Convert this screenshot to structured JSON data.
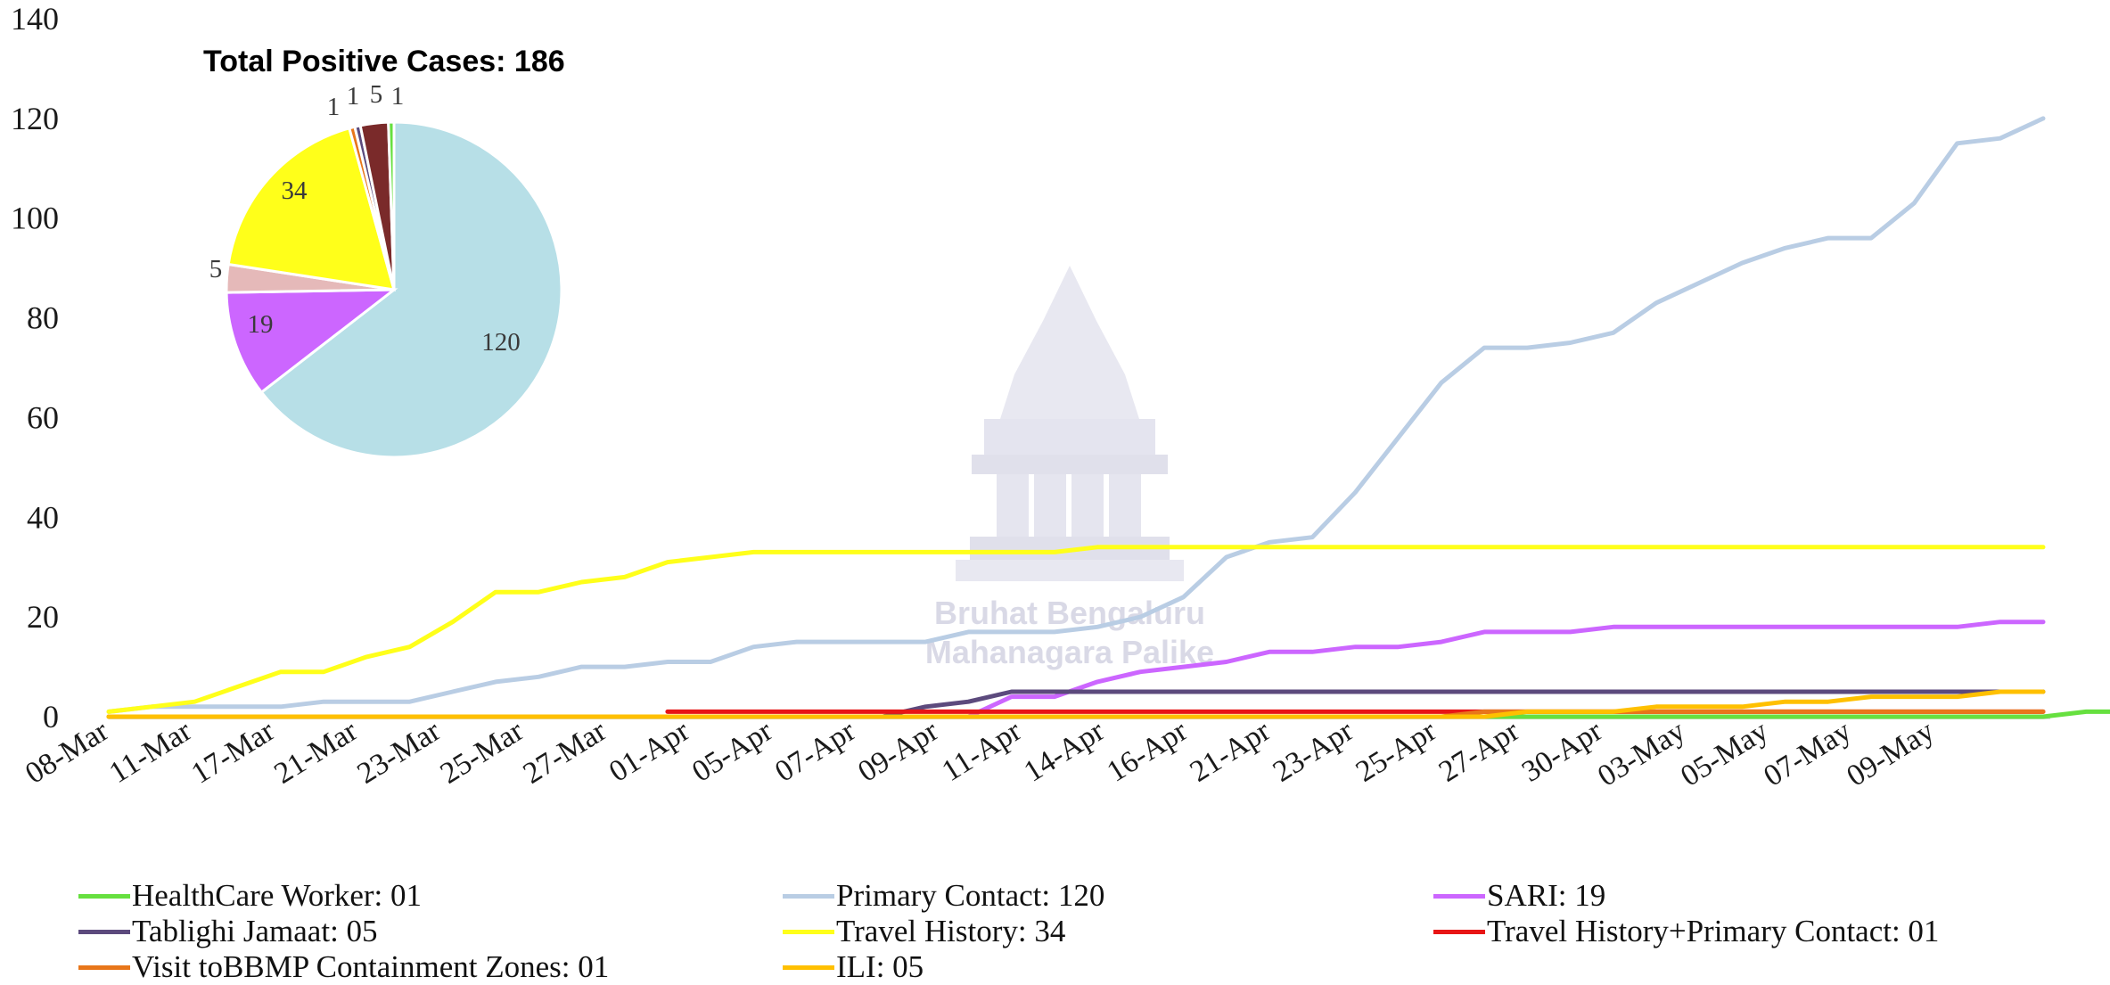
{
  "chart_data": {
    "type": "line",
    "title": "",
    "xlabel": "",
    "ylabel": "",
    "ylim": [
      0,
      140
    ],
    "yticks": [
      0,
      20,
      40,
      60,
      80,
      100,
      120,
      140
    ],
    "grid": false,
    "legend_position": "bottom",
    "x_tick_labels": [
      "08-Mar",
      "11-Mar",
      "17-Mar",
      "21-Mar",
      "23-Mar",
      "25-Mar",
      "27-Mar",
      "01-Apr",
      "05-Apr",
      "07-Apr",
      "09-Apr",
      "11-Apr",
      "14-Apr",
      "16-Apr",
      "21-Apr",
      "23-Apr",
      "25-Apr",
      "27-Apr",
      "30-Apr",
      "03-May",
      "05-May",
      "07-May",
      "09-May"
    ],
    "series": [
      {
        "name": "HealthCare Worker: 01",
        "color": "#66e03f",
        "values": [
          0,
          0,
          0,
          0,
          0,
          0,
          0,
          0,
          0,
          0,
          0,
          0,
          0,
          0,
          0,
          0,
          0,
          0,
          0,
          0,
          0,
          0,
          0,
          0,
          0,
          0,
          0,
          0,
          0,
          0,
          0,
          0,
          0,
          0,
          0,
          0,
          0,
          0,
          0,
          0,
          0,
          0,
          0,
          0,
          0,
          0,
          1,
          1
        ]
      },
      {
        "name": "Primary Contact: 120",
        "color": "#b9cde4",
        "values": [
          1,
          2,
          2,
          2,
          2,
          3,
          3,
          3,
          5,
          7,
          8,
          10,
          10,
          11,
          11,
          14,
          15,
          15,
          15,
          15,
          17,
          17,
          17,
          18,
          20,
          24,
          32,
          35,
          36,
          45,
          56,
          67,
          74,
          74,
          75,
          77,
          83,
          87,
          91,
          94,
          96,
          96,
          103,
          115,
          116,
          120
        ]
      },
      {
        "name": "SARI: 19",
        "color": "#cc66ff",
        "values": [
          null,
          null,
          null,
          null,
          null,
          null,
          null,
          null,
          null,
          null,
          null,
          null,
          null,
          null,
          null,
          null,
          null,
          null,
          null,
          null,
          0,
          4,
          4,
          7,
          9,
          10,
          11,
          13,
          13,
          14,
          14,
          15,
          17,
          17,
          17,
          18,
          18,
          18,
          18,
          18,
          18,
          18,
          18,
          18,
          19,
          19
        ]
      },
      {
        "name": "Tablighi Jamaat: 05",
        "color": "#5c4a7d",
        "values": [
          null,
          null,
          null,
          null,
          null,
          null,
          null,
          null,
          null,
          null,
          null,
          null,
          null,
          null,
          null,
          null,
          null,
          null,
          0,
          2,
          3,
          5,
          5,
          5,
          5,
          5,
          5,
          5,
          5,
          5,
          5,
          5,
          5,
          5,
          5,
          5,
          5,
          5,
          5,
          5,
          5,
          5,
          5,
          5,
          5,
          5
        ]
      },
      {
        "name": "Travel History: 34",
        "color": "#ffff1a",
        "values": [
          1,
          2,
          3,
          6,
          9,
          9,
          12,
          14,
          19,
          25,
          25,
          27,
          28,
          31,
          32,
          33,
          33,
          33,
          33,
          33,
          33,
          33,
          33,
          34,
          34,
          34,
          34,
          34,
          34,
          34,
          34,
          34,
          34,
          34,
          34,
          34,
          34,
          34,
          34,
          34,
          34,
          34,
          34,
          34,
          34,
          34
        ]
      },
      {
        "name": "Travel History+Primary Contact: 01",
        "color": "#e81515",
        "values": [
          null,
          null,
          null,
          null,
          null,
          null,
          null,
          null,
          null,
          null,
          null,
          null,
          null,
          1,
          1,
          1,
          1,
          1,
          1,
          1,
          1,
          1,
          1,
          1,
          1,
          1,
          1,
          1,
          1,
          1,
          1,
          1,
          1,
          1,
          1,
          1,
          1,
          1,
          1,
          1,
          1,
          1,
          1,
          1,
          1,
          1
        ]
      },
      {
        "name": "Visit toBBMP Containment Zones: 01",
        "color": "#e8761a",
        "values": [
          0,
          0,
          0,
          0,
          0,
          0,
          0,
          0,
          0,
          0,
          0,
          0,
          0,
          0,
          0,
          0,
          0,
          0,
          0,
          0,
          0,
          0,
          0,
          0,
          0,
          0,
          0,
          0,
          0,
          0,
          0,
          0,
          1,
          1,
          1,
          1,
          1,
          1,
          1,
          1,
          1,
          1,
          1,
          1,
          1,
          1
        ]
      },
      {
        "name": "ILI: 05",
        "color": "#ffc000",
        "values": [
          0,
          0,
          0,
          0,
          0,
          0,
          0,
          0,
          0,
          0,
          0,
          0,
          0,
          0,
          0,
          0,
          0,
          0,
          0,
          0,
          0,
          0,
          0,
          0,
          0,
          0,
          0,
          0,
          0,
          0,
          0,
          0,
          0,
          1,
          1,
          1,
          2,
          2,
          2,
          3,
          3,
          4,
          4,
          4,
          5,
          5
        ]
      }
    ],
    "inset_pie": {
      "type": "pie",
      "title": "Total Positive Cases: 186",
      "slices": [
        {
          "value": 120,
          "label": "120",
          "color": "#b7dfe7"
        },
        {
          "value": 19,
          "label": "19",
          "color": "#cc66ff"
        },
        {
          "value": 5,
          "label": "5",
          "color": "#e5b9b9"
        },
        {
          "value": 34,
          "label": "34",
          "color": "#ffff1a"
        },
        {
          "value": 1,
          "label": "1",
          "color": "#e8761a"
        },
        {
          "value": 1,
          "label": "1",
          "color": "#5c4a7d"
        },
        {
          "value": 5,
          "label": "5",
          "color": "#7a2a2a"
        },
        {
          "value": 1,
          "label": "1",
          "color": "#66e03f"
        }
      ]
    }
  },
  "watermark": {
    "line1": "Bruhat Bengaluru",
    "line2": "Mahanagara Palike"
  }
}
